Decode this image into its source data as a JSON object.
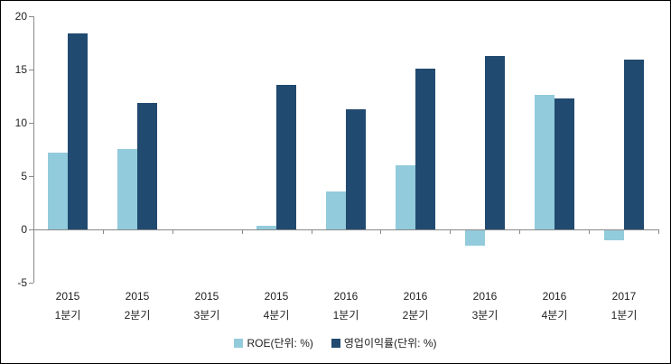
{
  "chart_data": {
    "type": "bar",
    "title": "",
    "xlabel": "",
    "ylabel": "",
    "ylim": [
      -5,
      20
    ],
    "yticks": [
      20,
      15,
      10,
      5,
      0,
      -5
    ],
    "grid": false,
    "legend_position": "bottom",
    "categories": [
      [
        "2015",
        "1분기"
      ],
      [
        "2015",
        "2분기"
      ],
      [
        "2015",
        "3분기"
      ],
      [
        "2015",
        "4분기"
      ],
      [
        "2016",
        "1분기"
      ],
      [
        "2016",
        "2분기"
      ],
      [
        "2016",
        "3분기"
      ],
      [
        "2016",
        "4분기"
      ],
      [
        "2017",
        "1분기"
      ]
    ],
    "series": [
      {
        "name": "ROE(단위: %)",
        "color": "#92CBDC",
        "values": [
          7.2,
          7.5,
          0,
          0.3,
          3.6,
          6.0,
          -1.4,
          12.6,
          -0.9
        ]
      },
      {
        "name": "영업이익률(단위: %)",
        "color": "#214A70",
        "values": [
          18.4,
          11.9,
          0,
          13.6,
          11.3,
          15.1,
          16.3,
          12.3,
          15.9
        ]
      }
    ]
  },
  "colors": {
    "axis": "#898989",
    "label_text": "#1f1f1f",
    "background": "#ffffff",
    "border": "#000000"
  }
}
